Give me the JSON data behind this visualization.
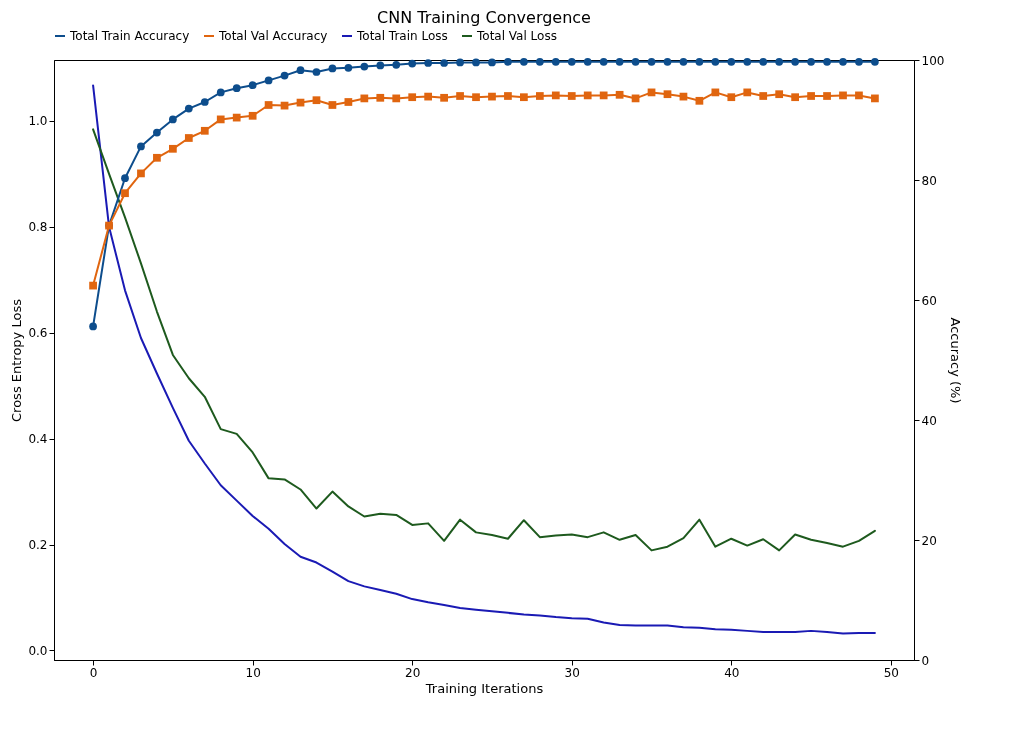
{
  "chart_data": {
    "type": "line",
    "title": "CNN Training Convergence",
    "xlabel": "Training Iterations",
    "ylabel": "Cross Entropy Loss",
    "y2label": "Accuracy (%)",
    "x": [
      0,
      1,
      2,
      3,
      4,
      5,
      6,
      7,
      8,
      9,
      10,
      11,
      12,
      13,
      14,
      15,
      16,
      17,
      18,
      19,
      20,
      21,
      22,
      23,
      24,
      25,
      26,
      27,
      28,
      29,
      30,
      31,
      32,
      33,
      34,
      35,
      36,
      37,
      38,
      39,
      40,
      41,
      42,
      43,
      44,
      45,
      46,
      47,
      48,
      49
    ],
    "xlim": [
      -2.45,
      51.45
    ],
    "xticks": [
      0,
      10,
      20,
      30,
      40,
      50
    ],
    "ylim": [
      -0.018,
      1.115
    ],
    "yticks": [
      {
        "value": 0,
        "label": "0.0"
      },
      0.2,
      0.4,
      0.6,
      0.8,
      {
        "value": 1,
        "label": "1.0"
      }
    ],
    "y2lim": [
      0,
      100
    ],
    "y2ticks": [
      0,
      20,
      40,
      60,
      80,
      100
    ],
    "grid": false,
    "legend": "top",
    "series": [
      {
        "name": "Total Train Accuracy",
        "color": "#0d4d8c",
        "axis": "y2",
        "marker": "circle",
        "values": [
          55.6,
          72.4,
          80.3,
          85.6,
          87.9,
          90.1,
          91.9,
          93.0,
          94.6,
          95.3,
          95.8,
          96.6,
          97.4,
          98.3,
          98.0,
          98.6,
          98.7,
          98.9,
          99.1,
          99.2,
          99.4,
          99.5,
          99.5,
          99.6,
          99.6,
          99.6,
          99.7,
          99.7,
          99.7,
          99.7,
          99.7,
          99.7,
          99.7,
          99.7,
          99.7,
          99.7,
          99.7,
          99.7,
          99.7,
          99.7,
          99.7,
          99.7,
          99.7,
          99.7,
          99.7,
          99.7,
          99.7,
          99.7,
          99.7,
          99.7
        ]
      },
      {
        "name": "Total Val Accuracy",
        "color": "#e0650f",
        "axis": "y2",
        "marker": "square",
        "values": [
          62.4,
          72.4,
          77.8,
          81.1,
          83.7,
          85.2,
          87.0,
          88.2,
          90.1,
          90.4,
          90.7,
          92.5,
          92.4,
          92.9,
          93.3,
          92.5,
          93.0,
          93.6,
          93.7,
          93.6,
          93.8,
          93.9,
          93.7,
          94.0,
          93.8,
          93.9,
          94.0,
          93.8,
          94.0,
          94.1,
          94.0,
          94.1,
          94.1,
          94.2,
          93.6,
          94.6,
          94.3,
          93.9,
          93.2,
          94.6,
          93.8,
          94.6,
          94.0,
          94.3,
          93.8,
          94.0,
          94.0,
          94.1,
          94.1,
          93.6
        ]
      },
      {
        "name": "Total Train Loss",
        "color": "#1a1ab4",
        "values": [
          1.067,
          0.8,
          0.68,
          0.59,
          0.523,
          0.458,
          0.396,
          0.353,
          0.312,
          0.283,
          0.254,
          0.23,
          0.201,
          0.177,
          0.166,
          0.149,
          0.131,
          0.121,
          0.114,
          0.107,
          0.097,
          0.091,
          0.086,
          0.08,
          0.077,
          0.074,
          0.071,
          0.068,
          0.066,
          0.063,
          0.061,
          0.06,
          0.053,
          0.048,
          0.047,
          0.047,
          0.047,
          0.044,
          0.043,
          0.04,
          0.039,
          0.037,
          0.035,
          0.035,
          0.035,
          0.037,
          0.035,
          0.032,
          0.033,
          0.033
        ]
      },
      {
        "name": "Total Val Loss",
        "color": "#1e5a1e",
        "values": [
          0.984,
          0.9,
          0.818,
          0.731,
          0.64,
          0.558,
          0.514,
          0.479,
          0.418,
          0.409,
          0.374,
          0.325,
          0.323,
          0.304,
          0.268,
          0.3,
          0.272,
          0.253,
          0.258,
          0.256,
          0.237,
          0.24,
          0.207,
          0.247,
          0.223,
          0.218,
          0.211,
          0.246,
          0.214,
          0.217,
          0.219,
          0.214,
          0.223,
          0.209,
          0.218,
          0.189,
          0.196,
          0.212,
          0.247,
          0.196,
          0.211,
          0.198,
          0.21,
          0.189,
          0.219,
          0.209,
          0.203,
          0.196,
          0.207,
          0.226
        ]
      }
    ]
  }
}
